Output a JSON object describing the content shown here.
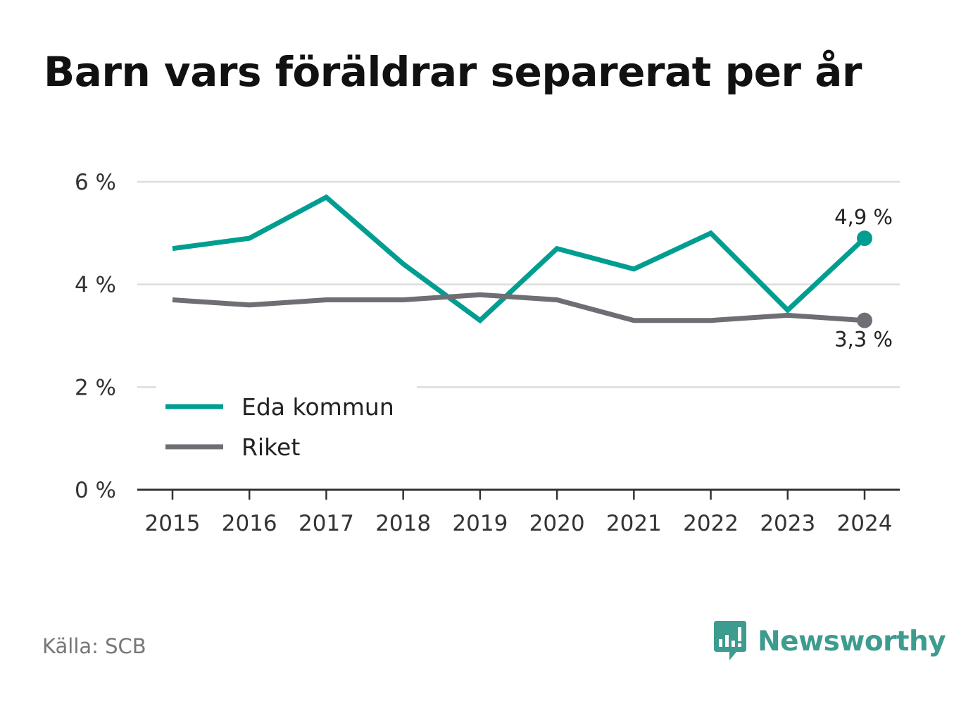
{
  "title": "Barn vars föräldrar separerat per år",
  "source": "Källa: SCB",
  "brand": "Newsworthy",
  "brand_icon": "newsworthy-logo-icon",
  "colors": {
    "eda": "#009e91",
    "riket": "#6e6e74",
    "grid": "#dddddd",
    "axis": "#333333",
    "brand": "#3d9b8f"
  },
  "chart_data": {
    "type": "line",
    "categories": [
      "2015",
      "2016",
      "2017",
      "2018",
      "2019",
      "2020",
      "2021",
      "2022",
      "2023",
      "2024"
    ],
    "x_tick_labels": [
      "2015",
      "2016",
      "2017",
      "2018",
      "2019",
      "2020",
      "2021",
      "2022",
      "2023",
      "2024"
    ],
    "y_ticks": [
      0,
      2,
      4,
      6
    ],
    "y_tick_labels": [
      "0 %",
      "2 %",
      "4 %",
      "6 %"
    ],
    "ylim": [
      0,
      6
    ],
    "unit": "%",
    "grid": true,
    "legend_position": "bottom-left",
    "series": [
      {
        "name": "Eda kommun",
        "color": "#009e91",
        "values": [
          4.7,
          4.9,
          5.7,
          4.4,
          3.3,
          4.7,
          4.3,
          5.0,
          3.5,
          4.9
        ],
        "end_label": "4,9 %"
      },
      {
        "name": "Riket",
        "color": "#6e6e74",
        "values": [
          3.7,
          3.6,
          3.7,
          3.7,
          3.8,
          3.7,
          3.3,
          3.3,
          3.4,
          3.3
        ],
        "end_label": "3,3 %"
      }
    ]
  }
}
